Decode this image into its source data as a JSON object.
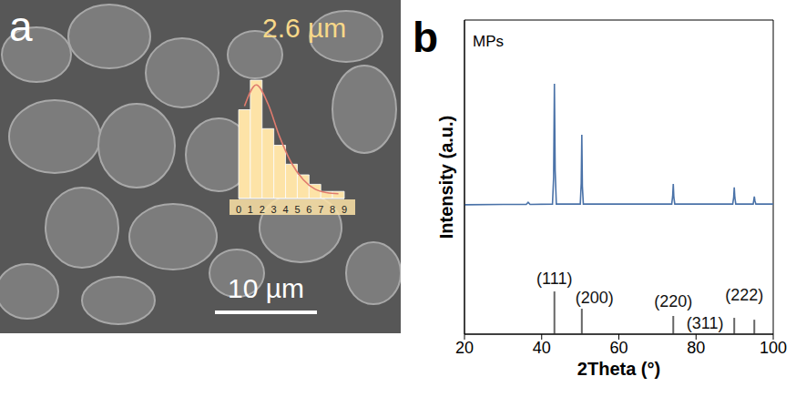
{
  "chart_data": [
    {
      "type": "histogram",
      "panel": "a",
      "title": "2.6 µm",
      "annotations": [
        "10 µm"
      ],
      "bins": [
        0,
        1,
        2,
        3,
        4,
        5,
        6,
        7,
        8,
        9
      ],
      "counts": [
        75,
        100,
        59,
        45,
        29,
        20,
        12,
        6,
        6
      ],
      "color": "#fde3a7",
      "xlim": [
        0,
        9
      ],
      "xticks": [
        0,
        1,
        2,
        3,
        4,
        5,
        6,
        7,
        8,
        9
      ],
      "ylim": [
        0,
        110
      ],
      "tick_labels": "x",
      "series": [
        {
          "type": "line",
          "color": "#e07b6e",
          "x": [
            0.5,
            1.5,
            2.5,
            3.5,
            4.5,
            5.5,
            6.5,
            7.5,
            8.5
          ],
          "values": [
            78,
            96,
            80,
            52,
            30,
            16,
            8,
            5,
            4
          ]
        }
      ]
    },
    {
      "type": "line",
      "panel": "b",
      "xlabel": "2Theta (°)",
      "ylabel": "Intensity (a.u.)",
      "xlim": [
        20,
        100
      ],
      "xticks": [
        20,
        40,
        60,
        80,
        100
      ],
      "ylim": [
        0,
        100
      ],
      "tick_labels": "x",
      "legend": "upper left",
      "series": [
        {
          "name": "MPs",
          "color": "#4a72a8",
          "x": [
            20,
            30,
            36.0,
            36.5,
            37.0,
            42.8,
            43.1,
            43.3,
            43.5,
            43.8,
            50.0,
            50.25,
            50.4,
            50.55,
            50.8,
            73.7,
            73.95,
            74.1,
            74.25,
            74.5,
            89.5,
            89.75,
            89.9,
            90.05,
            90.3,
            94.8,
            94.95,
            95.1,
            95.25,
            95.5,
            100
          ],
          "values": [
            41.2,
            41.3,
            41.3,
            42.0,
            41.3,
            41.4,
            50,
            79.7,
            52,
            41.4,
            41.4,
            48,
            63.5,
            47,
            41.4,
            41.4,
            44,
            47.8,
            43.5,
            41.4,
            41.4,
            43.5,
            46.7,
            43.5,
            41.4,
            41.4,
            42.5,
            43.8,
            42.5,
            41.4,
            41.4
          ]
        },
        {
          "type": "stick",
          "color": "#666666",
          "x": [
            43.3,
            50.4,
            74.1,
            89.9,
            95.1
          ],
          "values": [
            13.6,
            8.1,
            5.8,
            5.2,
            4.6
          ],
          "labels": [
            "(111)",
            "(200)",
            "(220)",
            "(311)",
            "(222)"
          ]
        }
      ]
    }
  ]
}
